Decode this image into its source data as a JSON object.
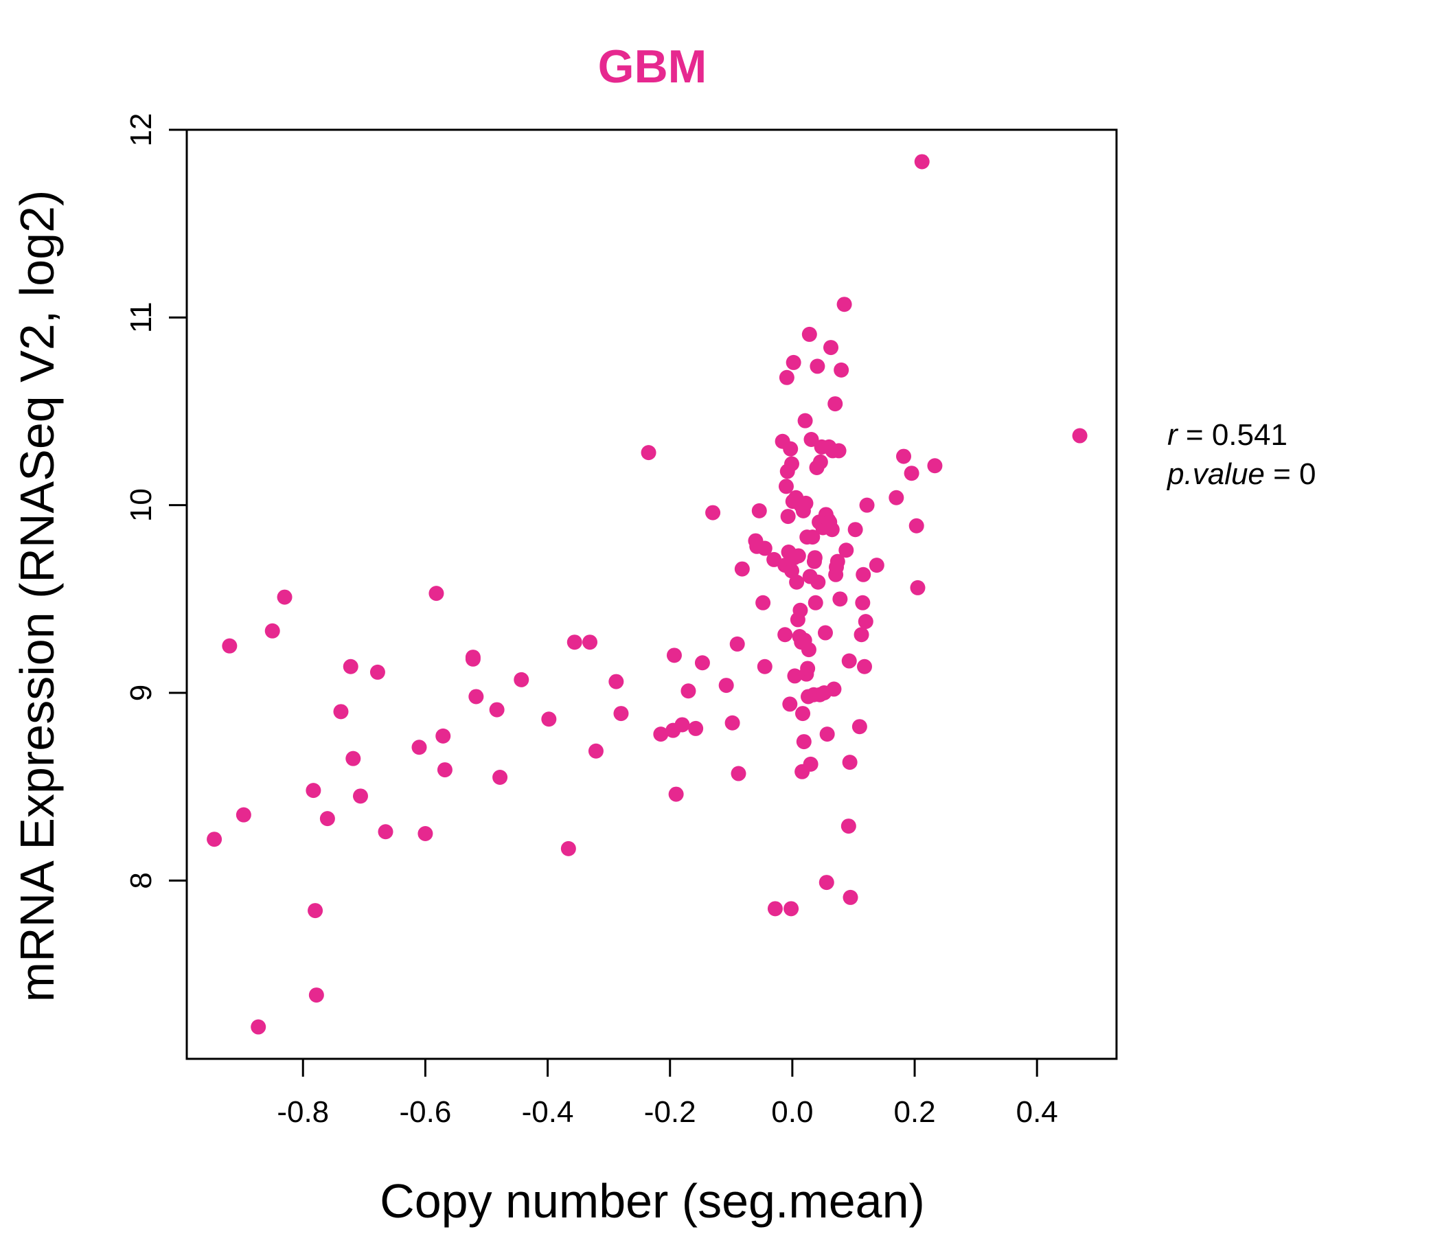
{
  "chart_data": {
    "type": "scatter",
    "title": "GBM",
    "xlabel": "Copy number (seg.mean)",
    "ylabel": "mRNA Expression (RNASeq V2, log2)",
    "xlim": [
      -0.99,
      0.53
    ],
    "ylim": [
      7.05,
      12.0
    ],
    "xticks": [
      -0.8,
      -0.6,
      -0.4,
      -0.2,
      0.0,
      0.2,
      0.4
    ],
    "xtick_labels": [
      "-0.8",
      "-0.6",
      "-0.4",
      "-0.2",
      "0.0",
      "0.2",
      "0.4"
    ],
    "yticks": [
      8,
      9,
      10,
      11,
      12
    ],
    "ytick_labels": [
      "8",
      "9",
      "10",
      "11",
      "12"
    ],
    "grid": false,
    "color": "#E6288F",
    "annotation": {
      "r_label": "r",
      "r_value": "0.541",
      "p_label": "p.value",
      "p_value": "0"
    },
    "points": [
      [
        -0.945,
        8.22
      ],
      [
        -0.92,
        9.25
      ],
      [
        -0.897,
        8.35
      ],
      [
        -0.873,
        7.22
      ],
      [
        -0.85,
        9.33
      ],
      [
        -0.83,
        9.51
      ],
      [
        -0.783,
        8.48
      ],
      [
        -0.78,
        7.84
      ],
      [
        -0.778,
        7.39
      ],
      [
        -0.76,
        8.33
      ],
      [
        -0.738,
        8.9
      ],
      [
        -0.722,
        9.14
      ],
      [
        -0.718,
        8.65
      ],
      [
        -0.706,
        8.45
      ],
      [
        -0.678,
        9.11
      ],
      [
        -0.665,
        8.26
      ],
      [
        -0.61,
        8.71
      ],
      [
        -0.6,
        8.25
      ],
      [
        -0.582,
        9.53
      ],
      [
        -0.571,
        8.77
      ],
      [
        -0.568,
        8.59
      ],
      [
        -0.522,
        9.19
      ],
      [
        -0.522,
        9.18
      ],
      [
        -0.517,
        8.98
      ],
      [
        -0.483,
        8.91
      ],
      [
        -0.478,
        8.55
      ],
      [
        -0.443,
        9.07
      ],
      [
        -0.398,
        8.86
      ],
      [
        -0.366,
        8.17
      ],
      [
        -0.356,
        9.27
      ],
      [
        -0.331,
        9.27
      ],
      [
        -0.321,
        8.69
      ],
      [
        -0.288,
        9.06
      ],
      [
        -0.28,
        8.89
      ],
      [
        -0.235,
        10.28
      ],
      [
        -0.215,
        8.78
      ],
      [
        -0.195,
        8.8
      ],
      [
        -0.193,
        9.2
      ],
      [
        -0.19,
        8.46
      ],
      [
        -0.18,
        8.83
      ],
      [
        -0.17,
        9.01
      ],
      [
        -0.158,
        8.81
      ],
      [
        -0.147,
        9.16
      ],
      [
        -0.13,
        9.96
      ],
      [
        -0.108,
        9.04
      ],
      [
        -0.098,
        8.84
      ],
      [
        -0.09,
        9.26
      ],
      [
        -0.088,
        8.57
      ],
      [
        -0.082,
        9.66
      ],
      [
        -0.06,
        9.81
      ],
      [
        -0.058,
        9.78
      ],
      [
        -0.054,
        9.97
      ],
      [
        -0.048,
        9.48
      ],
      [
        -0.045,
        9.14
      ],
      [
        -0.045,
        9.77
      ],
      [
        -0.03,
        9.71
      ],
      [
        -0.028,
        7.85
      ],
      [
        -0.016,
        10.34
      ],
      [
        -0.012,
        9.31
      ],
      [
        -0.012,
        9.68
      ],
      [
        -0.01,
        10.1
      ],
      [
        -0.009,
        10.68
      ],
      [
        -0.008,
        10.18
      ],
      [
        -0.007,
        9.94
      ],
      [
        -0.006,
        9.75
      ],
      [
        -0.004,
        8.94
      ],
      [
        -0.003,
        10.3
      ],
      [
        -0.002,
        7.85
      ],
      [
        -0.001,
        10.22
      ],
      [
        -0.001,
        9.65
      ],
      [
        0.001,
        10.02
      ],
      [
        0.002,
        10.76
      ],
      [
        0.003,
        9.72
      ],
      [
        0.004,
        9.09
      ],
      [
        0.006,
        10.04
      ],
      [
        0.007,
        9.59
      ],
      [
        0.009,
        9.39
      ],
      [
        0.01,
        9.73
      ],
      [
        0.012,
        9.3
      ],
      [
        0.013,
        9.44
      ],
      [
        0.014,
        10.0
      ],
      [
        0.015,
        9.27
      ],
      [
        0.016,
        8.58
      ],
      [
        0.017,
        8.89
      ],
      [
        0.018,
        9.97
      ],
      [
        0.019,
        8.74
      ],
      [
        0.02,
        9.28
      ],
      [
        0.021,
        10.45
      ],
      [
        0.022,
        10.01
      ],
      [
        0.023,
        9.1
      ],
      [
        0.024,
        9.83
      ],
      [
        0.025,
        9.13
      ],
      [
        0.026,
        8.98
      ],
      [
        0.027,
        9.23
      ],
      [
        0.028,
        10.91
      ],
      [
        0.029,
        9.62
      ],
      [
        0.03,
        8.62
      ],
      [
        0.031,
        10.35
      ],
      [
        0.033,
        9.83
      ],
      [
        0.035,
        8.99
      ],
      [
        0.036,
        9.7
      ],
      [
        0.037,
        9.72
      ],
      [
        0.038,
        9.48
      ],
      [
        0.04,
        10.2
      ],
      [
        0.041,
        10.74
      ],
      [
        0.042,
        9.59
      ],
      [
        0.044,
        9.91
      ],
      [
        0.045,
        8.99
      ],
      [
        0.046,
        10.23
      ],
      [
        0.048,
        10.31
      ],
      [
        0.05,
        9.88
      ],
      [
        0.052,
        9.0
      ],
      [
        0.054,
        9.32
      ],
      [
        0.055,
        9.95
      ],
      [
        0.056,
        7.99
      ],
      [
        0.057,
        8.78
      ],
      [
        0.059,
        9.92
      ],
      [
        0.06,
        10.31
      ],
      [
        0.061,
        9.91
      ],
      [
        0.063,
        10.84
      ],
      [
        0.065,
        9.87
      ],
      [
        0.066,
        10.29
      ],
      [
        0.068,
        9.02
      ],
      [
        0.07,
        10.54
      ],
      [
        0.071,
        9.63
      ],
      [
        0.072,
        9.67
      ],
      [
        0.074,
        9.7
      ],
      [
        0.076,
        10.29
      ],
      [
        0.078,
        9.5
      ],
      [
        0.08,
        10.72
      ],
      [
        0.085,
        11.07
      ],
      [
        0.088,
        9.76
      ],
      [
        0.092,
        8.29
      ],
      [
        0.093,
        9.17
      ],
      [
        0.094,
        8.63
      ],
      [
        0.095,
        7.91
      ],
      [
        0.103,
        9.87
      ],
      [
        0.11,
        8.82
      ],
      [
        0.113,
        9.31
      ],
      [
        0.115,
        9.48
      ],
      [
        0.116,
        9.63
      ],
      [
        0.118,
        9.14
      ],
      [
        0.12,
        9.38
      ],
      [
        0.122,
        10.0
      ],
      [
        0.138,
        9.68
      ],
      [
        0.17,
        10.04
      ],
      [
        0.182,
        10.26
      ],
      [
        0.195,
        10.17
      ],
      [
        0.203,
        9.89
      ],
      [
        0.205,
        9.56
      ],
      [
        0.212,
        11.83
      ],
      [
        0.233,
        10.21
      ],
      [
        0.47,
        10.37
      ]
    ]
  }
}
